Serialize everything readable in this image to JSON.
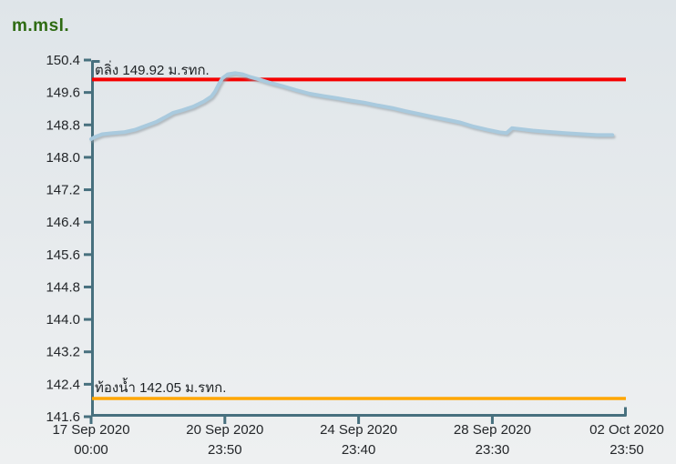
{
  "chart_data": {
    "type": "line",
    "title": "m.msl.",
    "y_axis": {
      "min": 141.6,
      "max": 150.4,
      "tick_step": 0.8,
      "tick_labels": [
        "150.4",
        "149.6",
        "148.8",
        "148.0",
        "147.2",
        "146.4",
        "145.6",
        "144.8",
        "144.0",
        "143.2",
        "142.4",
        "141.6"
      ]
    },
    "x_axis": {
      "range_days": [
        0,
        15.993
      ],
      "tick_days": [
        0,
        3.993,
        7.986,
        11.979,
        15.993
      ],
      "tick_labels": [
        {
          "date": "17 Sep 2020",
          "time": "00:00"
        },
        {
          "date": "20 Sep 2020",
          "time": "23:50"
        },
        {
          "date": "24 Sep 2020",
          "time": "23:40"
        },
        {
          "date": "28 Sep 2020",
          "time": "23:30"
        },
        {
          "date": "02 Oct 2020",
          "time": "23:50"
        }
      ]
    },
    "ref_lines": [
      {
        "name": "bank-level",
        "label": "ตลิ่ง 149.92 ม.รทก.",
        "value": 149.92,
        "color": "#f50000"
      },
      {
        "name": "bed-level",
        "label": "ท้องน้ำ 142.05 ม.รทก.",
        "value": 142.05,
        "color": "#ffa602"
      }
    ],
    "series": [
      {
        "name": "water-level",
        "color": "#a9cade",
        "x_days": [
          0,
          0.11,
          0.33,
          0.65,
          0.98,
          1.31,
          1.63,
          1.96,
          2.23,
          2.45,
          2.72,
          3.05,
          3.37,
          3.59,
          3.7,
          3.81,
          3.92,
          4.08,
          4.3,
          4.52,
          4.76,
          5.03,
          5.3,
          5.71,
          6.12,
          6.53,
          6.94,
          7.34,
          7.75,
          8.16,
          8.57,
          8.98,
          9.38,
          9.79,
          10.2,
          10.61,
          11.02,
          11.42,
          11.83,
          12.19,
          12.4,
          12.57,
          12.78,
          13.19,
          13.6,
          14.14,
          14.69,
          15.1,
          15.56
        ],
        "values": [
          148.45,
          148.5,
          148.57,
          148.6,
          148.62,
          148.68,
          148.78,
          148.88,
          149.0,
          149.1,
          149.16,
          149.25,
          149.38,
          149.5,
          149.62,
          149.8,
          149.95,
          150.05,
          150.08,
          150.05,
          149.98,
          149.92,
          149.85,
          149.76,
          149.66,
          149.57,
          149.51,
          149.46,
          149.4,
          149.35,
          149.28,
          149.22,
          149.14,
          149.07,
          149.0,
          148.93,
          148.86,
          148.76,
          148.68,
          148.62,
          148.6,
          148.72,
          148.7,
          148.66,
          148.63,
          148.6,
          148.57,
          148.55,
          148.55
        ]
      }
    ],
    "legend": "none",
    "grid": "off"
  },
  "colors": {
    "title_green": "#2e6b12",
    "axis": "#47707e",
    "tick_text": "#232629",
    "bank_red": "#f50000",
    "bed_orange": "#ffa602",
    "water_blue": "#a9cade",
    "bg_top": "#dfe5e9",
    "bg_bottom": "#eef0f1"
  }
}
